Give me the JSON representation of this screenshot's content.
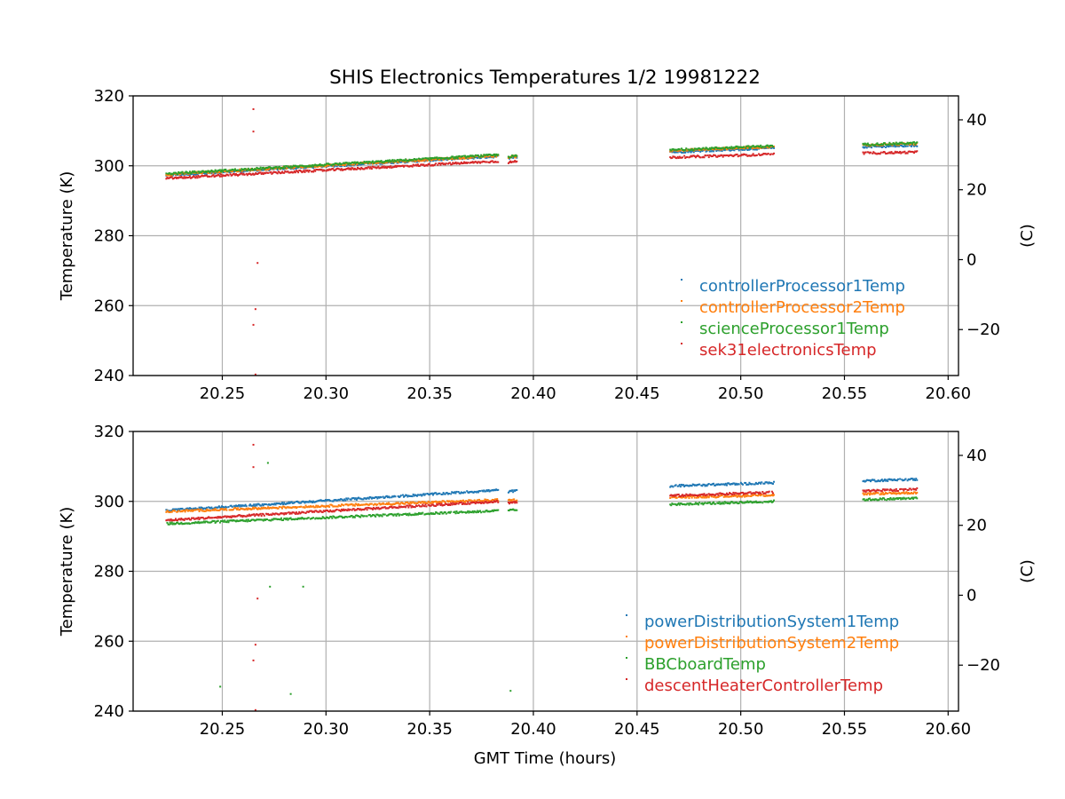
{
  "chart_data": {
    "title": "SHIS Electronics Temperatures 1/2 19981222",
    "xlabel": "GMT Time (hours)",
    "x_ticks": [
      "20.25",
      "20.30",
      "20.35",
      "20.40",
      "20.45",
      "20.50",
      "20.55",
      "20.60"
    ],
    "x_tick_values": [
      20.25,
      20.3,
      20.35,
      20.4,
      20.45,
      20.5,
      20.55,
      20.6
    ],
    "xlim": [
      20.207,
      20.605
    ],
    "panels": [
      {
        "type": "scatter",
        "ylabel": "Temperature (K)",
        "ylabel_right": "(C)",
        "ylim": [
          240,
          320
        ],
        "y_ticks": [
          "240",
          "260",
          "280",
          "300",
          "320"
        ],
        "y_tick_values": [
          240,
          260,
          280,
          300,
          320
        ],
        "y2_ticks": [
          "−20",
          "0",
          "20",
          "40"
        ],
        "y2_tick_values": [
          -20,
          0,
          20,
          40
        ],
        "grid": true,
        "legend_position": "lower-right",
        "series": [
          {
            "name": "controllerProcessor1Temp",
            "color": "#1f77b4",
            "segments": [
              [
                20.223,
                20.383,
                297.3,
                302.7
              ],
              [
                20.388,
                20.392,
                302.3,
                302.5
              ],
              [
                20.466,
                20.516,
                303.9,
                305.1
              ],
              [
                20.559,
                20.585,
                305.4,
                305.8
              ]
            ],
            "outliers": []
          },
          {
            "name": "controllerProcessor2Temp",
            "color": "#ff7f0e",
            "segments": [
              [
                20.223,
                20.383,
                297.5,
                302.9
              ],
              [
                20.388,
                20.392,
                302.5,
                302.7
              ],
              [
                20.466,
                20.516,
                304.3,
                305.5
              ],
              [
                20.559,
                20.585,
                305.9,
                306.3
              ]
            ],
            "outliers": []
          },
          {
            "name": "scienceProcessor1Temp",
            "color": "#2ca02c",
            "segments": [
              [
                20.223,
                20.383,
                297.7,
                303.1
              ],
              [
                20.388,
                20.392,
                302.6,
                302.8
              ],
              [
                20.466,
                20.516,
                304.5,
                305.7
              ],
              [
                20.559,
                20.585,
                306.1,
                306.5
              ]
            ],
            "outliers": []
          },
          {
            "name": "sek31electronicsTemp",
            "color": "#d62728",
            "segments": [
              [
                20.223,
                20.383,
                296.4,
                301.3
              ],
              [
                20.388,
                20.392,
                301.0,
                301.2
              ],
              [
                20.466,
                20.516,
                302.4,
                303.3
              ],
              [
                20.559,
                20.585,
                303.6,
                303.9
              ]
            ],
            "outliers": [
              [
                20.265,
                316.2
              ],
              [
                20.265,
                309.8
              ],
              [
                20.267,
                272.2
              ],
              [
                20.266,
                259.0
              ],
              [
                20.265,
                254.5
              ],
              [
                20.266,
                240.3
              ]
            ]
          }
        ]
      },
      {
        "type": "scatter",
        "ylabel": "Temperature (K)",
        "ylabel_right": "(C)",
        "ylim": [
          240,
          320
        ],
        "y_ticks": [
          "240",
          "260",
          "280",
          "300",
          "320"
        ],
        "y_tick_values": [
          240,
          260,
          280,
          300,
          320
        ],
        "y2_ticks": [
          "−20",
          "0",
          "20",
          "40"
        ],
        "y2_tick_values": [
          -20,
          0,
          20,
          40
        ],
        "grid": true,
        "legend_position": "lower-right",
        "series": [
          {
            "name": "powerDistributionSystem1Temp",
            "color": "#1f77b4",
            "segments": [
              [
                20.223,
                20.383,
                297.4,
                303.2
              ],
              [
                20.388,
                20.392,
                302.8,
                303.0
              ],
              [
                20.466,
                20.516,
                304.4,
                305.3
              ],
              [
                20.559,
                20.585,
                305.9,
                306.3
              ]
            ],
            "outliers": []
          },
          {
            "name": "powerDistributionSystem2Temp",
            "color": "#ff7f0e",
            "segments": [
              [
                20.223,
                20.383,
                297.1,
                300.4
              ],
              [
                20.388,
                20.392,
                300.2,
                300.4
              ],
              [
                20.466,
                20.516,
                301.1,
                301.8
              ],
              [
                20.559,
                20.585,
                302.1,
                302.5
              ]
            ],
            "outliers": []
          },
          {
            "name": "BBCboardTemp",
            "color": "#2ca02c",
            "segments": [
              [
                20.223,
                20.383,
                293.6,
                297.3
              ],
              [
                20.388,
                20.392,
                297.4,
                297.5
              ],
              [
                20.466,
                20.516,
                299.1,
                300.0
              ],
              [
                20.559,
                20.585,
                300.5,
                300.9
              ]
            ],
            "outliers": [
              [
                20.272,
                311.0
              ],
              [
                20.273,
                275.6
              ],
              [
                20.289,
                275.6
              ],
              [
                20.283,
                244.9
              ],
              [
                20.249,
                247.0
              ],
              [
                20.389,
                245.8
              ]
            ]
          },
          {
            "name": "descentHeaterControllerTemp",
            "color": "#d62728",
            "segments": [
              [
                20.223,
                20.383,
                294.6,
                300.0
              ],
              [
                20.388,
                20.392,
                299.6,
                299.8
              ],
              [
                20.466,
                20.516,
                301.6,
                302.6
              ],
              [
                20.559,
                20.585,
                302.9,
                303.5
              ]
            ],
            "outliers": [
              [
                20.265,
                316.2
              ],
              [
                20.265,
                309.8
              ],
              [
                20.267,
                272.2
              ],
              [
                20.266,
                259.0
              ],
              [
                20.265,
                254.5
              ],
              [
                20.266,
                240.3
              ]
            ]
          }
        ]
      }
    ]
  },
  "colors": {
    "axes": "#000000",
    "grid": "#b0b0b0",
    "background": "#ffffff"
  }
}
